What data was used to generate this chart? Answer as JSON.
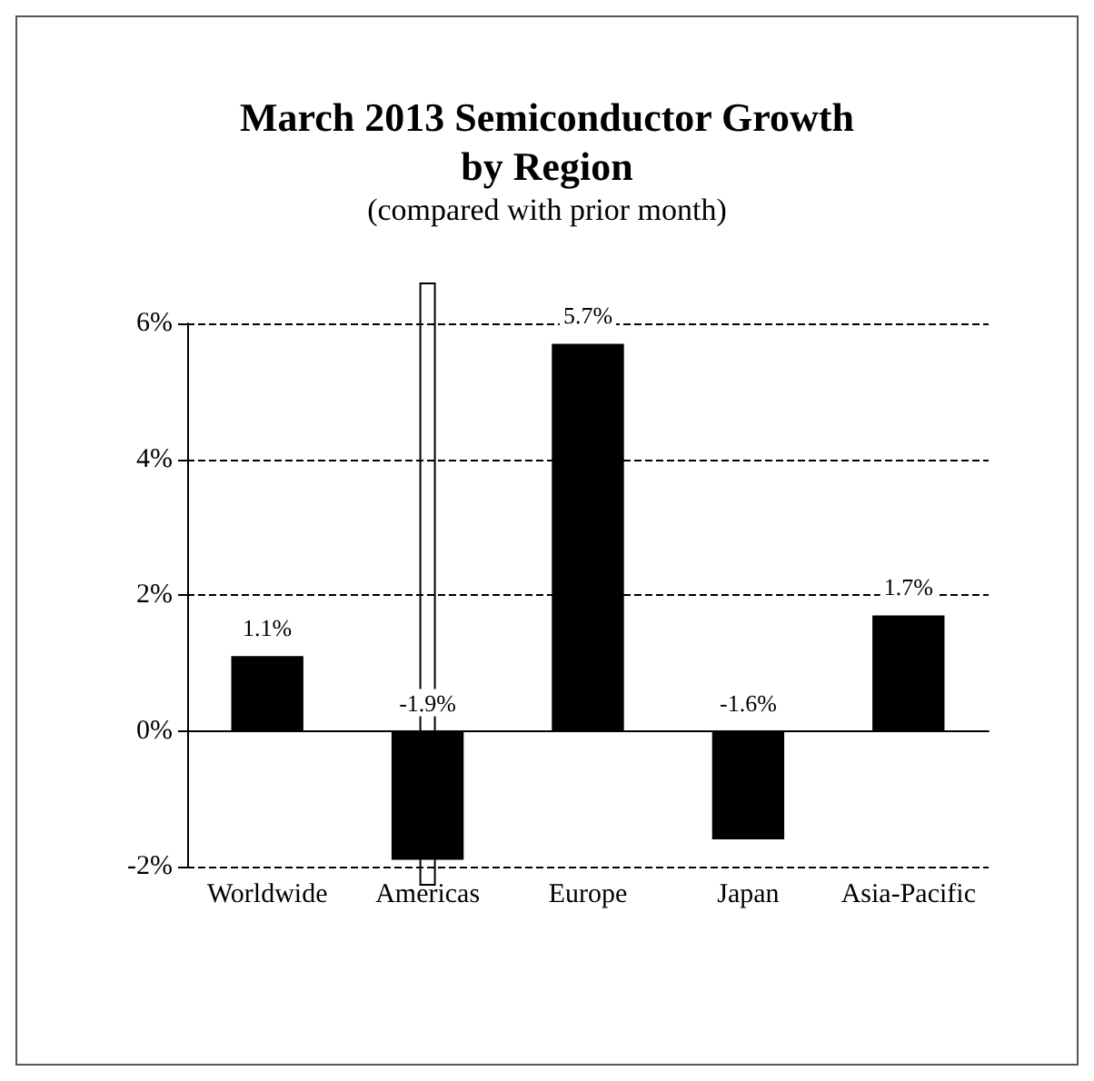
{
  "chart_data": {
    "type": "bar",
    "title": "March 2013 Semiconductor Growth\nby Region",
    "subtitle": "(compared with prior month)",
    "categories": [
      "Worldwide",
      "Americas",
      "Europe",
      "Japan",
      "Asia-Pacific"
    ],
    "values": [
      1.1,
      -1.9,
      5.7,
      -1.6,
      1.7
    ],
    "value_labels": [
      "1.1%",
      "-1.9%",
      "5.7%",
      "-1.6%",
      "1.7%"
    ],
    "color": "#000000",
    "ylim": [
      -2,
      6
    ],
    "yticks": [
      {
        "value": -2,
        "label": "-2%"
      },
      {
        "value": 0,
        "label": "0%"
      },
      {
        "value": 2,
        "label": "2%"
      },
      {
        "value": 4,
        "label": "4%"
      },
      {
        "value": 6,
        "label": "6%"
      }
    ],
    "grid": "y"
  }
}
